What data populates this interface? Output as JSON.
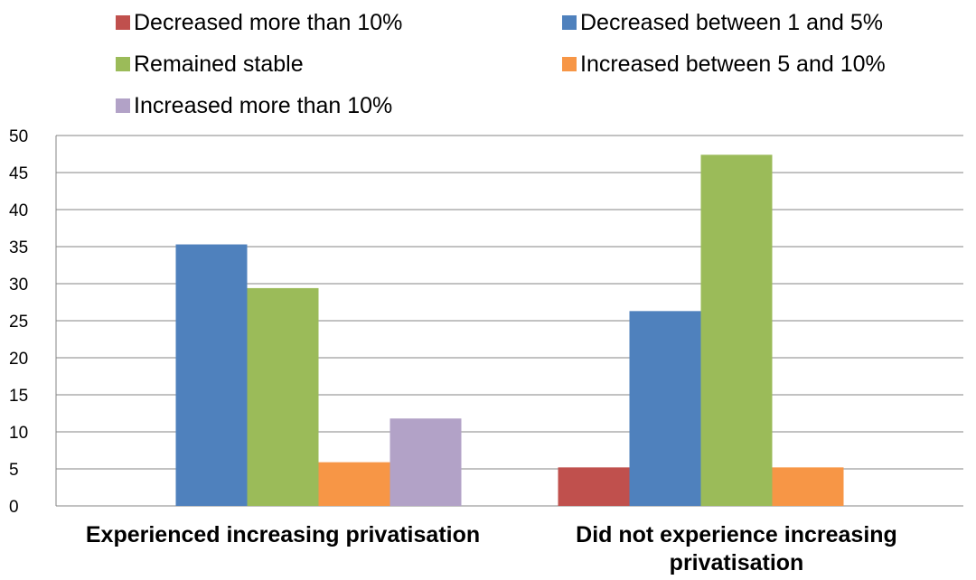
{
  "chart_data": {
    "type": "bar",
    "title": "",
    "xlabel": "",
    "ylabel": "",
    "ylim": [
      0,
      50
    ],
    "yticks": [
      0,
      5,
      10,
      15,
      20,
      25,
      30,
      35,
      40,
      45,
      50
    ],
    "grid": true,
    "legend_position": "top",
    "categories": [
      [
        "Experienced increasing privatisation"
      ],
      [
        "Did not experience increasing",
        "privatisation"
      ]
    ],
    "series": [
      {
        "name": "Decreased more than 10%",
        "color": "#C0504D",
        "values": [
          0,
          5.2
        ]
      },
      {
        "name": "Decreased between 1 and 5%",
        "color": "#4F81BD",
        "values": [
          35.3,
          26.3
        ]
      },
      {
        "name": "Remained stable",
        "color": "#9BBB59",
        "values": [
          29.4,
          47.4
        ]
      },
      {
        "name": "Increased between 5 and 10%",
        "color": "#F79646",
        "values": [
          5.9,
          5.2
        ]
      },
      {
        "name": "Increased more than 10%",
        "color": "#B2A2C7",
        "values": [
          11.8,
          0
        ]
      }
    ]
  }
}
